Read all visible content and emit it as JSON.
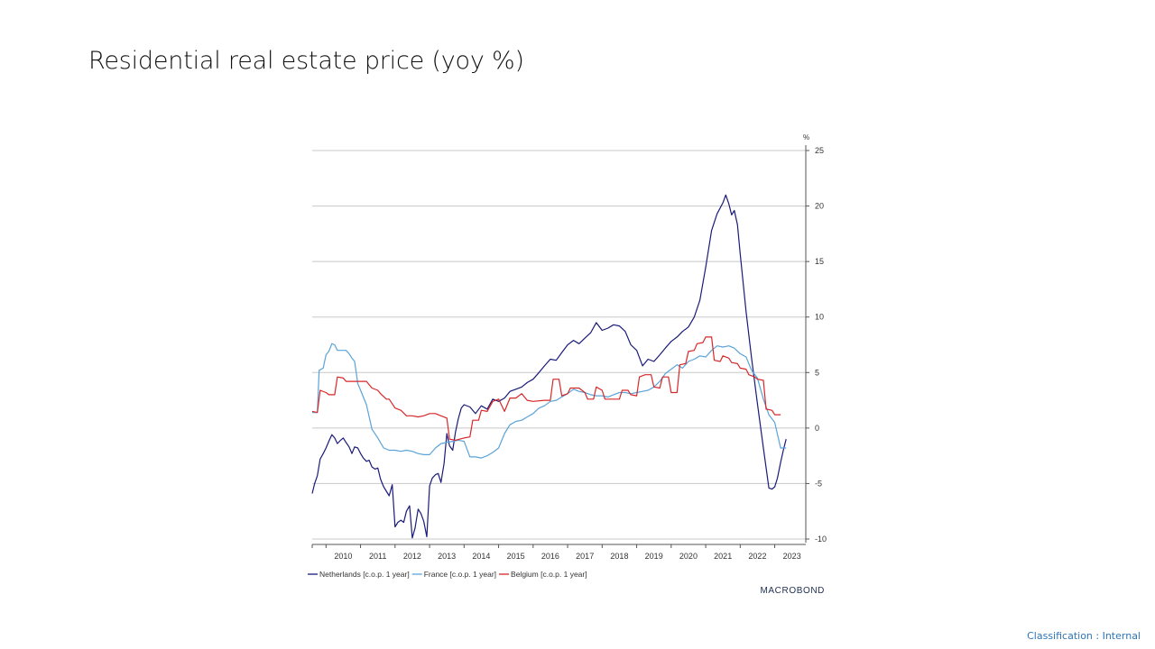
{
  "slide": {
    "title": "Residential real estate price (yoy %)",
    "classification": "Classification : Internal"
  },
  "chart_data": {
    "type": "line",
    "unit_label": "%",
    "ylim": [
      -10,
      25
    ],
    "yticks": [
      25,
      20,
      15,
      10,
      5,
      0,
      -5,
      -10
    ],
    "xlim": [
      2009.6,
      2023.9
    ],
    "xtick_labels": [
      "2010",
      "2011",
      "2012",
      "2013",
      "2014",
      "2015",
      "2016",
      "2017",
      "2018",
      "2019",
      "2020",
      "2021",
      "2022",
      "2023"
    ],
    "grid": true,
    "y_axis_side": "right",
    "legend_position": "bottom-left",
    "source_logo": "MACROBOND",
    "series": [
      {
        "name": "Netherlands [c.o.p. 1 year]",
        "color": "#1a1a7a",
        "points": [
          [
            2009.6,
            -5.9
          ],
          [
            2009.67,
            -5.0
          ],
          [
            2009.75,
            -4.3
          ],
          [
            2009.83,
            -2.8
          ],
          [
            2009.92,
            -2.3
          ],
          [
            2010.0,
            -1.8
          ],
          [
            2010.08,
            -1.2
          ],
          [
            2010.17,
            -0.6
          ],
          [
            2010.25,
            -0.9
          ],
          [
            2010.33,
            -1.4
          ],
          [
            2010.42,
            -1.1
          ],
          [
            2010.5,
            -0.9
          ],
          [
            2010.58,
            -1.3
          ],
          [
            2010.67,
            -1.7
          ],
          [
            2010.75,
            -2.3
          ],
          [
            2010.83,
            -1.7
          ],
          [
            2010.92,
            -1.8
          ],
          [
            2011.0,
            -2.3
          ],
          [
            2011.08,
            -2.7
          ],
          [
            2011.17,
            -3.0
          ],
          [
            2011.25,
            -2.9
          ],
          [
            2011.33,
            -3.5
          ],
          [
            2011.42,
            -3.7
          ],
          [
            2011.5,
            -3.6
          ],
          [
            2011.58,
            -4.6
          ],
          [
            2011.67,
            -5.3
          ],
          [
            2011.75,
            -5.7
          ],
          [
            2011.83,
            -6.1
          ],
          [
            2011.92,
            -5.1
          ],
          [
            2012.0,
            -8.9
          ],
          [
            2012.08,
            -8.5
          ],
          [
            2012.17,
            -8.3
          ],
          [
            2012.25,
            -8.5
          ],
          [
            2012.33,
            -7.5
          ],
          [
            2012.42,
            -7.0
          ],
          [
            2012.5,
            -9.9
          ],
          [
            2012.58,
            -9.0
          ],
          [
            2012.67,
            -7.3
          ],
          [
            2012.75,
            -7.7
          ],
          [
            2012.83,
            -8.4
          ],
          [
            2012.92,
            -9.8
          ],
          [
            2013.0,
            -5.2
          ],
          [
            2013.08,
            -4.5
          ],
          [
            2013.17,
            -4.2
          ],
          [
            2013.25,
            -4.1
          ],
          [
            2013.33,
            -4.9
          ],
          [
            2013.42,
            -3.2
          ],
          [
            2013.5,
            -0.5
          ],
          [
            2013.58,
            -1.6
          ],
          [
            2013.67,
            -2.0
          ],
          [
            2013.75,
            -0.4
          ],
          [
            2013.83,
            0.8
          ],
          [
            2013.92,
            1.8
          ],
          [
            2014.0,
            2.1
          ],
          [
            2014.17,
            1.9
          ],
          [
            2014.33,
            1.3
          ],
          [
            2014.5,
            2.0
          ],
          [
            2014.67,
            1.7
          ],
          [
            2014.83,
            2.6
          ],
          [
            2015.0,
            2.4
          ],
          [
            2015.17,
            2.7
          ],
          [
            2015.33,
            3.3
          ],
          [
            2015.5,
            3.5
          ],
          [
            2015.67,
            3.7
          ],
          [
            2015.83,
            4.1
          ],
          [
            2016.0,
            4.4
          ],
          [
            2016.17,
            5.0
          ],
          [
            2016.33,
            5.6
          ],
          [
            2016.5,
            6.2
          ],
          [
            2016.67,
            6.1
          ],
          [
            2016.83,
            6.8
          ],
          [
            2017.0,
            7.5
          ],
          [
            2017.17,
            7.9
          ],
          [
            2017.33,
            7.6
          ],
          [
            2017.5,
            8.1
          ],
          [
            2017.67,
            8.6
          ],
          [
            2017.83,
            9.5
          ],
          [
            2018.0,
            8.8
          ],
          [
            2018.17,
            9.0
          ],
          [
            2018.33,
            9.3
          ],
          [
            2018.5,
            9.2
          ],
          [
            2018.67,
            8.7
          ],
          [
            2018.83,
            7.5
          ],
          [
            2019.0,
            7.0
          ],
          [
            2019.17,
            5.6
          ],
          [
            2019.33,
            6.2
          ],
          [
            2019.5,
            6.0
          ],
          [
            2019.67,
            6.6
          ],
          [
            2019.83,
            7.2
          ],
          [
            2020.0,
            7.8
          ],
          [
            2020.17,
            8.2
          ],
          [
            2020.33,
            8.7
          ],
          [
            2020.5,
            9.1
          ],
          [
            2020.67,
            10.0
          ],
          [
            2020.83,
            11.5
          ],
          [
            2021.0,
            14.5
          ],
          [
            2021.17,
            17.8
          ],
          [
            2021.33,
            19.3
          ],
          [
            2021.5,
            20.3
          ],
          [
            2021.58,
            21.0
          ],
          [
            2021.67,
            20.2
          ],
          [
            2021.75,
            19.2
          ],
          [
            2021.83,
            19.6
          ],
          [
            2021.92,
            18.3
          ],
          [
            2022.0,
            15.7
          ],
          [
            2022.17,
            10.5
          ],
          [
            2022.33,
            6.3
          ],
          [
            2022.5,
            2.2
          ],
          [
            2022.67,
            -1.8
          ],
          [
            2022.83,
            -5.4
          ],
          [
            2022.92,
            -5.5
          ],
          [
            2023.0,
            -5.3
          ],
          [
            2023.08,
            -4.5
          ],
          [
            2023.17,
            -3.1
          ],
          [
            2023.25,
            -2.0
          ],
          [
            2023.33,
            -1.0
          ]
        ]
      },
      {
        "name": "France [c.o.p. 1 year]",
        "color": "#5aa3d8",
        "points": [
          [
            2009.6,
            1.4
          ],
          [
            2009.75,
            1.4
          ],
          [
            2009.8,
            5.2
          ],
          [
            2009.92,
            5.4
          ],
          [
            2010.0,
            6.6
          ],
          [
            2010.08,
            6.9
          ],
          [
            2010.17,
            7.6
          ],
          [
            2010.25,
            7.5
          ],
          [
            2010.33,
            7.0
          ],
          [
            2010.58,
            7.0
          ],
          [
            2010.67,
            6.7
          ],
          [
            2010.75,
            6.3
          ],
          [
            2010.83,
            6.0
          ],
          [
            2010.92,
            4.0
          ],
          [
            2011.0,
            3.4
          ],
          [
            2011.17,
            2.1
          ],
          [
            2011.33,
            -0.1
          ],
          [
            2011.5,
            -0.9
          ],
          [
            2011.67,
            -1.8
          ],
          [
            2011.83,
            -2.0
          ],
          [
            2012.0,
            -2.0
          ],
          [
            2012.17,
            -2.1
          ],
          [
            2012.33,
            -2.0
          ],
          [
            2012.5,
            -2.1
          ],
          [
            2012.67,
            -2.3
          ],
          [
            2012.83,
            -2.4
          ],
          [
            2013.0,
            -2.4
          ],
          [
            2013.17,
            -1.8
          ],
          [
            2013.33,
            -1.4
          ],
          [
            2013.5,
            -1.3
          ],
          [
            2013.67,
            -1.2
          ],
          [
            2013.83,
            -1.1
          ],
          [
            2014.0,
            -1.2
          ],
          [
            2014.17,
            -2.6
          ],
          [
            2014.33,
            -2.6
          ],
          [
            2014.5,
            -2.7
          ],
          [
            2014.67,
            -2.5
          ],
          [
            2014.83,
            -2.2
          ],
          [
            2015.0,
            -1.8
          ],
          [
            2015.17,
            -0.5
          ],
          [
            2015.33,
            0.3
          ],
          [
            2015.5,
            0.6
          ],
          [
            2015.67,
            0.7
          ],
          [
            2015.83,
            1.0
          ],
          [
            2016.0,
            1.3
          ],
          [
            2016.17,
            1.8
          ],
          [
            2016.33,
            2.0
          ],
          [
            2016.5,
            2.4
          ],
          [
            2016.67,
            2.5
          ],
          [
            2016.83,
            2.8
          ],
          [
            2017.0,
            3.1
          ],
          [
            2017.17,
            3.5
          ],
          [
            2017.33,
            3.3
          ],
          [
            2017.5,
            3.2
          ],
          [
            2017.67,
            3.0
          ],
          [
            2017.83,
            2.9
          ],
          [
            2018.0,
            2.9
          ],
          [
            2018.17,
            2.8
          ],
          [
            2018.33,
            3.0
          ],
          [
            2018.5,
            3.2
          ],
          [
            2018.67,
            3.2
          ],
          [
            2018.83,
            3.1
          ],
          [
            2019.0,
            3.2
          ],
          [
            2019.17,
            3.3
          ],
          [
            2019.33,
            3.4
          ],
          [
            2019.5,
            3.7
          ],
          [
            2019.67,
            4.2
          ],
          [
            2019.83,
            4.9
          ],
          [
            2020.0,
            5.3
          ],
          [
            2020.17,
            5.7
          ],
          [
            2020.33,
            5.4
          ],
          [
            2020.5,
            6.0
          ],
          [
            2020.67,
            6.2
          ],
          [
            2020.83,
            6.5
          ],
          [
            2021.0,
            6.4
          ],
          [
            2021.17,
            7.0
          ],
          [
            2021.33,
            7.4
          ],
          [
            2021.5,
            7.3
          ],
          [
            2021.67,
            7.4
          ],
          [
            2021.83,
            7.2
          ],
          [
            2022.0,
            6.7
          ],
          [
            2022.17,
            6.4
          ],
          [
            2022.33,
            5.2
          ],
          [
            2022.5,
            4.5
          ],
          [
            2022.67,
            2.6
          ],
          [
            2022.83,
            1.2
          ],
          [
            2023.0,
            0.5
          ],
          [
            2023.17,
            -1.8
          ],
          [
            2023.33,
            -1.8
          ]
        ]
      },
      {
        "name": "Belgium [c.o.p. 1 year]",
        "color": "#d62728",
        "points": [
          [
            2009.6,
            1.5
          ],
          [
            2009.75,
            1.4
          ],
          [
            2009.83,
            3.4
          ],
          [
            2010.0,
            3.2
          ],
          [
            2010.08,
            3.0
          ],
          [
            2010.25,
            3.0
          ],
          [
            2010.33,
            4.6
          ],
          [
            2010.5,
            4.5
          ],
          [
            2010.58,
            4.2
          ],
          [
            2010.75,
            4.2
          ],
          [
            2011.0,
            4.2
          ],
          [
            2011.17,
            4.2
          ],
          [
            2011.33,
            3.6
          ],
          [
            2011.5,
            3.4
          ],
          [
            2011.58,
            3.1
          ],
          [
            2011.75,
            2.6
          ],
          [
            2011.83,
            2.6
          ],
          [
            2012.0,
            1.8
          ],
          [
            2012.17,
            1.6
          ],
          [
            2012.33,
            1.1
          ],
          [
            2012.5,
            1.1
          ],
          [
            2012.67,
            1.0
          ],
          [
            2012.83,
            1.1
          ],
          [
            2013.0,
            1.3
          ],
          [
            2013.17,
            1.3
          ],
          [
            2013.33,
            1.1
          ],
          [
            2013.5,
            0.9
          ],
          [
            2013.58,
            -1.0
          ],
          [
            2013.75,
            -1.1
          ],
          [
            2014.0,
            -0.9
          ],
          [
            2014.17,
            -0.8
          ],
          [
            2014.25,
            0.7
          ],
          [
            2014.42,
            0.7
          ],
          [
            2014.5,
            1.6
          ],
          [
            2014.67,
            1.5
          ],
          [
            2014.83,
            2.4
          ],
          [
            2015.0,
            2.6
          ],
          [
            2015.17,
            1.5
          ],
          [
            2015.33,
            2.7
          ],
          [
            2015.5,
            2.7
          ],
          [
            2015.67,
            3.1
          ],
          [
            2015.83,
            2.5
          ],
          [
            2016.0,
            2.4
          ],
          [
            2016.33,
            2.5
          ],
          [
            2016.5,
            2.5
          ],
          [
            2016.58,
            4.4
          ],
          [
            2016.75,
            4.4
          ],
          [
            2016.83,
            2.9
          ],
          [
            2017.0,
            3.1
          ],
          [
            2017.08,
            3.6
          ],
          [
            2017.33,
            3.6
          ],
          [
            2017.5,
            3.2
          ],
          [
            2017.58,
            2.6
          ],
          [
            2017.75,
            2.6
          ],
          [
            2017.83,
            3.7
          ],
          [
            2018.0,
            3.4
          ],
          [
            2018.08,
            2.6
          ],
          [
            2018.5,
            2.6
          ],
          [
            2018.58,
            3.4
          ],
          [
            2018.75,
            3.4
          ],
          [
            2018.83,
            3.0
          ],
          [
            2019.0,
            2.9
          ],
          [
            2019.08,
            4.6
          ],
          [
            2019.25,
            4.8
          ],
          [
            2019.42,
            4.8
          ],
          [
            2019.5,
            3.7
          ],
          [
            2019.67,
            3.6
          ],
          [
            2019.75,
            4.6
          ],
          [
            2019.92,
            4.6
          ],
          [
            2020.0,
            3.2
          ],
          [
            2020.17,
            3.2
          ],
          [
            2020.25,
            5.7
          ],
          [
            2020.42,
            5.8
          ],
          [
            2020.5,
            6.9
          ],
          [
            2020.67,
            7.0
          ],
          [
            2020.75,
            7.6
          ],
          [
            2020.92,
            7.7
          ],
          [
            2021.0,
            8.2
          ],
          [
            2021.17,
            8.2
          ],
          [
            2021.25,
            6.1
          ],
          [
            2021.42,
            6.0
          ],
          [
            2021.5,
            6.5
          ],
          [
            2021.67,
            6.3
          ],
          [
            2021.75,
            5.9
          ],
          [
            2021.92,
            5.8
          ],
          [
            2022.0,
            5.4
          ],
          [
            2022.17,
            5.3
          ],
          [
            2022.25,
            4.8
          ],
          [
            2022.42,
            4.6
          ],
          [
            2022.5,
            4.4
          ],
          [
            2022.67,
            4.3
          ],
          [
            2022.75,
            1.7
          ],
          [
            2022.92,
            1.6
          ],
          [
            2023.0,
            1.2
          ],
          [
            2023.17,
            1.2
          ]
        ]
      }
    ]
  }
}
